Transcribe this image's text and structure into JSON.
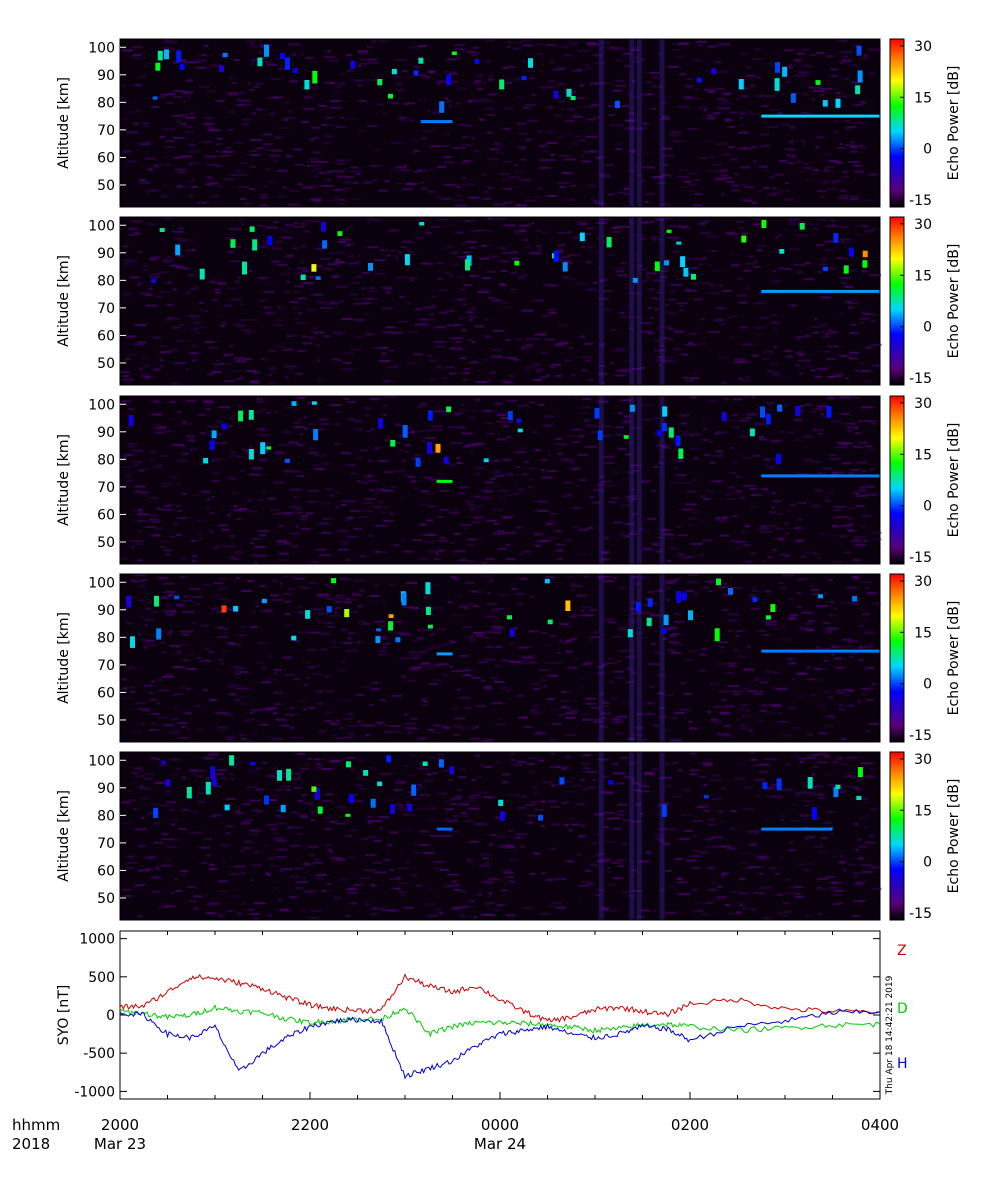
{
  "chart_data": [
    {
      "type": "heatmap",
      "panel": 1,
      "ylabel": "Altitude [km]",
      "yticks": [
        50,
        60,
        70,
        80,
        90,
        100
      ],
      "ylim": [
        42,
        103
      ],
      "colorbar": {
        "label": "Echo Power [dB]",
        "ticks": [
          -15,
          0,
          15,
          30
        ],
        "range": [
          -17,
          32
        ]
      },
      "echo_layers": [
        {
          "altitude_km": 75,
          "x_start": "0245",
          "x_end": "0400",
          "dB": 5
        },
        {
          "altitude_km": 73,
          "x_start": "2310",
          "x_end": "2330",
          "dB": 2
        }
      ]
    },
    {
      "type": "heatmap",
      "panel": 2,
      "ylabel": "Altitude [km]",
      "yticks": [
        50,
        60,
        70,
        80,
        90,
        100
      ],
      "ylim": [
        42,
        103
      ],
      "colorbar": {
        "label": "Echo Power [dB]",
        "ticks": [
          -15,
          0,
          15,
          30
        ],
        "range": [
          -17,
          32
        ]
      },
      "echo_layers": [
        {
          "altitude_km": 76,
          "x_start": "0245",
          "x_end": "0400",
          "dB": 3
        }
      ]
    },
    {
      "type": "heatmap",
      "panel": 3,
      "ylabel": "Altitude [km]",
      "yticks": [
        50,
        60,
        70,
        80,
        90,
        100
      ],
      "ylim": [
        42,
        103
      ],
      "colorbar": {
        "label": "Echo Power [dB]",
        "ticks": [
          -15,
          0,
          15,
          30
        ],
        "range": [
          -17,
          32
        ]
      },
      "echo_layers": [
        {
          "altitude_km": 74,
          "x_start": "0245",
          "x_end": "0400",
          "dB": 2
        },
        {
          "altitude_km": 72,
          "x_start": "2320",
          "x_end": "2330",
          "dB": 12
        }
      ]
    },
    {
      "type": "heatmap",
      "panel": 4,
      "ylabel": "Altitude [km]",
      "yticks": [
        50,
        60,
        70,
        80,
        90,
        100
      ],
      "ylim": [
        42,
        103
      ],
      "colorbar": {
        "label": "Echo Power [dB]",
        "ticks": [
          -15,
          0,
          15,
          30
        ],
        "range": [
          -17,
          32
        ]
      },
      "echo_layers": [
        {
          "altitude_km": 75,
          "x_start": "0245",
          "x_end": "0400",
          "dB": 2
        },
        {
          "altitude_km": 74,
          "x_start": "2320",
          "x_end": "2330",
          "dB": 3
        }
      ]
    },
    {
      "type": "heatmap",
      "panel": 5,
      "ylabel": "Altitude [km]",
      "yticks": [
        50,
        60,
        70,
        80,
        90,
        100
      ],
      "ylim": [
        42,
        103
      ],
      "colorbar": {
        "label": "Echo Power [dB]",
        "ticks": [
          -15,
          0,
          15,
          30
        ],
        "range": [
          -17,
          32
        ]
      },
      "echo_layers": [
        {
          "altitude_km": 75,
          "x_start": "0245",
          "x_end": "0330",
          "dB": 2
        },
        {
          "altitude_km": 75,
          "x_start": "2320",
          "x_end": "2330",
          "dB": 1
        }
      ]
    },
    {
      "type": "line",
      "panel": 6,
      "ylabel": "SYO [nT]",
      "yticks": [
        -1000,
        -500,
        0,
        500,
        1000
      ],
      "ylim": [
        -1100,
        1100
      ],
      "x_hours": [
        0,
        0.25,
        0.5,
        0.75,
        1.0,
        1.25,
        1.5,
        1.75,
        2.0,
        2.25,
        2.5,
        2.75,
        3.0,
        3.25,
        3.5,
        3.75,
        4.0,
        4.25,
        4.5,
        4.75,
        5.0,
        5.25,
        5.5,
        5.75,
        6.0,
        6.5,
        7.0,
        7.5,
        8.0
      ],
      "series": [
        {
          "name": "Z",
          "color": "#cc0000",
          "values": [
            100,
            120,
            300,
            500,
            480,
            420,
            350,
            230,
            130,
            80,
            60,
            60,
            500,
            380,
            300,
            380,
            200,
            50,
            -80,
            -30,
            70,
            100,
            50,
            0,
            150,
            200,
            80,
            50,
            40
          ]
        },
        {
          "name": "D",
          "color": "#00cc00",
          "values": [
            50,
            20,
            -30,
            0,
            100,
            50,
            30,
            -50,
            -100,
            -80,
            -50,
            -60,
            100,
            -250,
            -150,
            -100,
            -100,
            -110,
            -130,
            -160,
            -200,
            -180,
            -130,
            -120,
            -150,
            -200,
            -170,
            -130,
            -120
          ]
        },
        {
          "name": "H",
          "color": "#0000cc",
          "values": [
            30,
            0,
            -250,
            -300,
            -150,
            -750,
            -500,
            -300,
            -150,
            -80,
            -60,
            -80,
            -800,
            -700,
            -600,
            -400,
            -250,
            -200,
            -150,
            -250,
            -300,
            -250,
            -150,
            -180,
            -330,
            -150,
            -80,
            30,
            40
          ]
        }
      ],
      "legend_placement": "right",
      "annotation": "Thu Apr 18 14:42:21 2019"
    }
  ],
  "xaxis": {
    "row1_label": "hhmm",
    "row2_label": "2018",
    "ticks": [
      "2000",
      "2200",
      "0000",
      "0200",
      "0400"
    ],
    "dates": [
      {
        "text": "Mar 23",
        "tick_index": 0
      },
      {
        "text": "Mar 24",
        "tick_index": 2
      }
    ],
    "range_hours": [
      0,
      8
    ]
  }
}
